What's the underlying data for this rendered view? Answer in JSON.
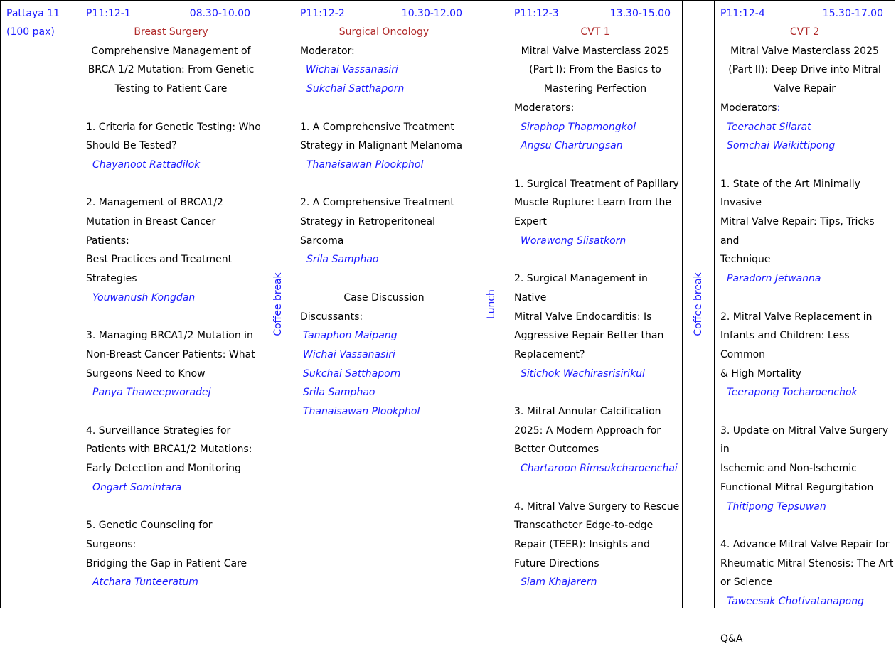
{
  "room": {
    "name": "Pattaya 11",
    "capacity": "(100 pax)"
  },
  "breaks": {
    "coffee1": "Coffee break",
    "lunch": "Lunch",
    "coffee2": "Coffee break"
  },
  "s1": {
    "code": "P11:12-1",
    "time": "08.30-10.00",
    "track": "Breast Surgery",
    "title": [
      "Comprehensive Management of",
      "BRCA 1/2 Mutation: From Genetic",
      "Testing to Patient Care"
    ],
    "talks": [
      {
        "lines": [
          "1. Criteria for Genetic Testing: Who",
          "Should Be Tested?"
        ],
        "speaker": "Chayanoot Rattadilok"
      },
      {
        "lines": [
          "2. Management of BRCA1/2",
          "Mutation in Breast Cancer Patients:",
          "Best Practices and Treatment",
          "Strategies"
        ],
        "speaker": "Youwanush Kongdan"
      },
      {
        "lines": [
          "3. Managing BRCA1/2 Mutation in",
          "Non-Breast Cancer Patients: What",
          "Surgeons Need to Know"
        ],
        "speaker": "Panya Thaweepworadej"
      },
      {
        "lines": [
          "4. Surveillance Strategies for",
          "Patients with BRCA1/2 Mutations:",
          "Early Detection and Monitoring"
        ],
        "speaker": "Ongart Somintara"
      },
      {
        "lines": [
          "5. Genetic Counseling for Surgeons:",
          "Bridging the Gap in Patient Care"
        ],
        "speaker": "Atchara Tunteeratum"
      }
    ]
  },
  "s2": {
    "code": "P11:12-2",
    "time": "10.30-12.00",
    "track": "Surgical Oncology",
    "moderator_label": "Moderator:",
    "moderators": [
      "Wichai Vassanasiri",
      "Sukchai Satthaporn"
    ],
    "talks": [
      {
        "lines": [
          "1. A Comprehensive Treatment",
          "Strategy in Malignant Melanoma"
        ],
        "speaker": "Thanaisawan Plookphol"
      },
      {
        "lines": [
          "2. A Comprehensive Treatment",
          "Strategy in Retroperitoneal",
          "Sarcoma"
        ],
        "speaker": "Srila Samphao"
      }
    ],
    "case_title": "Case Discussion",
    "discussants_label": "Discussants:",
    "discussants": [
      "Tanaphon Maipang",
      "Wichai Vassanasiri",
      "Sukchai Satthaporn",
      "Srila Samphao",
      "Thanaisawan Plookphol"
    ]
  },
  "s3": {
    "code": "P11:12-3",
    "time": "13.30-15.00",
    "track": "CVT 1",
    "title": [
      "Mitral Valve Masterclass 2025",
      "(Part I): From the Basics to",
      "Mastering Perfection"
    ],
    "moderator_label": "Moderators:",
    "moderators": [
      "Siraphop Thapmongkol",
      "Angsu Chartrungsan"
    ],
    "talks": [
      {
        "lines": [
          "1. Surgical Treatment of Papillary",
          "Muscle Rupture: Learn from the",
          "Expert"
        ],
        "speaker": "Worawong Slisatkorn"
      },
      {
        "lines": [
          "2. Surgical Management in Native",
          "Mitral Valve Endocarditis: Is",
          "Aggressive Repair Better than",
          "Replacement?"
        ],
        "speaker": "Sitichok Wachirasrisirikul"
      },
      {
        "lines": [
          "3. Mitral Annular Calcification",
          "2025: A Modern Approach for",
          "Better Outcomes"
        ],
        "speaker": "Chartaroon Rimsukcharoenchai"
      },
      {
        "lines": [
          "4. Mitral Valve Surgery to Rescue",
          "Transcatheter Edge-to-edge",
          "Repair (TEER): Insights and",
          "Future Directions"
        ],
        "speaker": "Siam Khajarern"
      }
    ]
  },
  "s4": {
    "code": "P11:12-4",
    "time": "15.30-17.00",
    "track": "CVT 2",
    "title": [
      "Mitral Valve Masterclass 2025",
      "(Part II): Deep Drive into Mitral",
      "Valve Repair"
    ],
    "moderator_label": "Moderators",
    "moderator_colon": ":",
    "moderators": [
      "Teerachat Silarat",
      "Somchai Waikittipong"
    ],
    "talks": [
      {
        "lines": [
          "1. State of the Art Minimally Invasive",
          "Mitral Valve Repair: Tips, Tricks and",
          "Technique"
        ],
        "speaker": "Paradorn Jetwanna"
      },
      {
        "lines": [
          "2. Mitral Valve Replacement in",
          "Infants and Children: Less Common",
          "& High Mortality"
        ],
        "speaker": "Teerapong Tocharoenchok"
      },
      {
        "lines": [
          "3. Update on Mitral Valve Surgery in",
          "Ischemic and Non-Ischemic",
          "Functional Mitral Regurgitation"
        ],
        "speaker": "Thitipong Tepsuwan"
      },
      {
        "lines": [
          "4. Advance Mitral Valve Repair for",
          "Rheumatic Mitral Stenosis: The Art",
          "or Science"
        ],
        "speaker": "Taweesak Chotivatanapong"
      }
    ],
    "closing": "Q&A"
  }
}
